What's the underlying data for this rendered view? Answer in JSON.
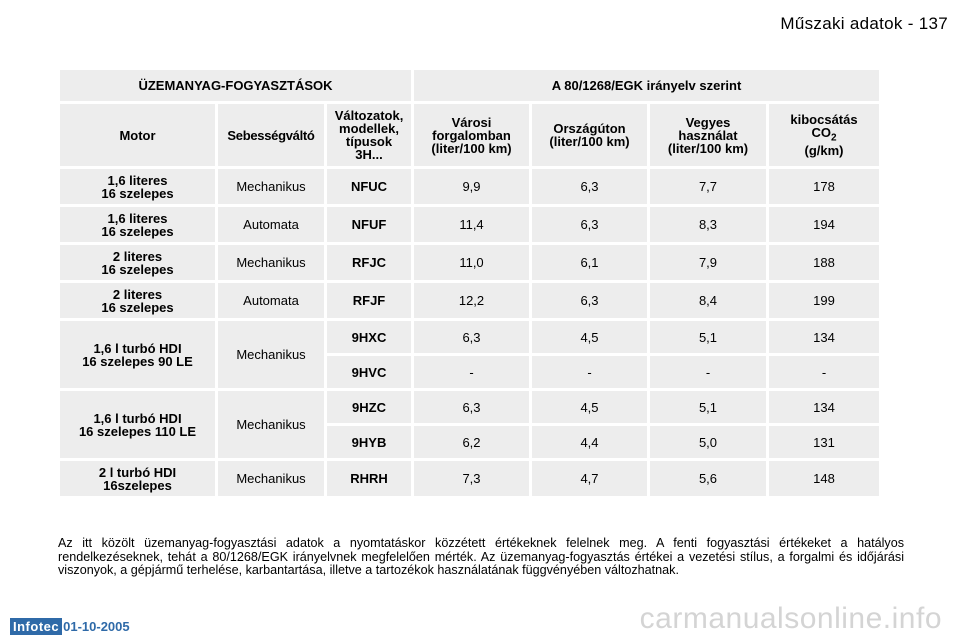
{
  "page": {
    "title": "Műszaki adatok - 137"
  },
  "table": {
    "title_left": "ÜZEMANYAG-FOGYASZTÁSOK",
    "title_right": "A 80/1268/EGK irányelv szerint",
    "headers": {
      "motor": "Motor",
      "gearbox": "Sebességváltó",
      "variant": [
        "Változatok,",
        "modellek,",
        "típusok",
        "3H..."
      ],
      "urban": [
        "Városi",
        "forgalomban",
        "(liter/100 km)"
      ],
      "highway": [
        "Országúton",
        "(liter/100 km)"
      ],
      "mixed": [
        "Vegyes",
        "használat",
        "(liter/100 km)"
      ],
      "co2": [
        "kibocsátás",
        "CO",
        "2",
        "(g/km)"
      ]
    },
    "rows": [
      {
        "motor": [
          "1,6 literes",
          "16 szelepes"
        ],
        "gearbox": "Mechanikus",
        "variant": "NFUC",
        "urban": "9,9",
        "highway": "6,3",
        "mixed": "7,7",
        "co2": "178"
      },
      {
        "motor": [
          "1,6 literes",
          "16 szelepes"
        ],
        "gearbox": "Automata",
        "variant": "NFUF",
        "urban": "11,4",
        "highway": "6,3",
        "mixed": "8,3",
        "co2": "194"
      },
      {
        "motor": [
          "2 literes",
          "16 szelepes"
        ],
        "gearbox": "Mechanikus",
        "variant": "RFJC",
        "urban": "11,0",
        "highway": "6,1",
        "mixed": "7,9",
        "co2": "188"
      },
      {
        "motor": [
          "2 literes",
          "16 szelepes"
        ],
        "gearbox": "Automata",
        "variant": "RFJF",
        "urban": "12,2",
        "highway": "6,3",
        "mixed": "8,4",
        "co2": "199"
      },
      {
        "motor": [
          "1,6 l turbó HDI",
          "16 szelepes 90 LE"
        ],
        "gearbox": "Mechanikus",
        "sub": [
          {
            "variant": "9HXC",
            "urban": "6,3",
            "highway": "4,5",
            "mixed": "5,1",
            "co2": "134"
          },
          {
            "variant": "9HVC",
            "urban": "-",
            "highway": "-",
            "mixed": "-",
            "co2": "-"
          }
        ]
      },
      {
        "motor": [
          "1,6 l turbó HDI",
          "16 szelepes 110 LE"
        ],
        "gearbox": "Mechanikus",
        "sub": [
          {
            "variant": "9HZC",
            "urban": "6,3",
            "highway": "4,5",
            "mixed": "5,1",
            "co2": "134"
          },
          {
            "variant": "9HYB",
            "urban": "6,2",
            "highway": "4,4",
            "mixed": "5,0",
            "co2": "131"
          }
        ]
      },
      {
        "motor": [
          "2 l turbó HDI",
          "16szelepes"
        ],
        "gearbox": "Mechanikus",
        "variant": "RHRH",
        "urban": "7,3",
        "highway": "4,7",
        "mixed": "5,6",
        "co2": "148"
      }
    ]
  },
  "footnote": "Az itt közölt üzemanyag-fogyasztási adatok a nyomtatáskor közzétett értékeknek felelnek meg. A fenti fogyasztási értékeket a hatályos rendelkezéseknek, tehát a 80/1268/EGK irányelvnek megfelelően mérték. Az üzemanyag-fogyasztás értékei a vezetési stílus, a forgalmi és időjárási viszonyok, a gépjármű terhelése, karbantartása, illetve a tartozékok használatának függvényében változhatnak.",
  "footer": {
    "brand": "Infotec",
    "date": "01-10-2005"
  },
  "watermark": "carmanualsonline.info"
}
